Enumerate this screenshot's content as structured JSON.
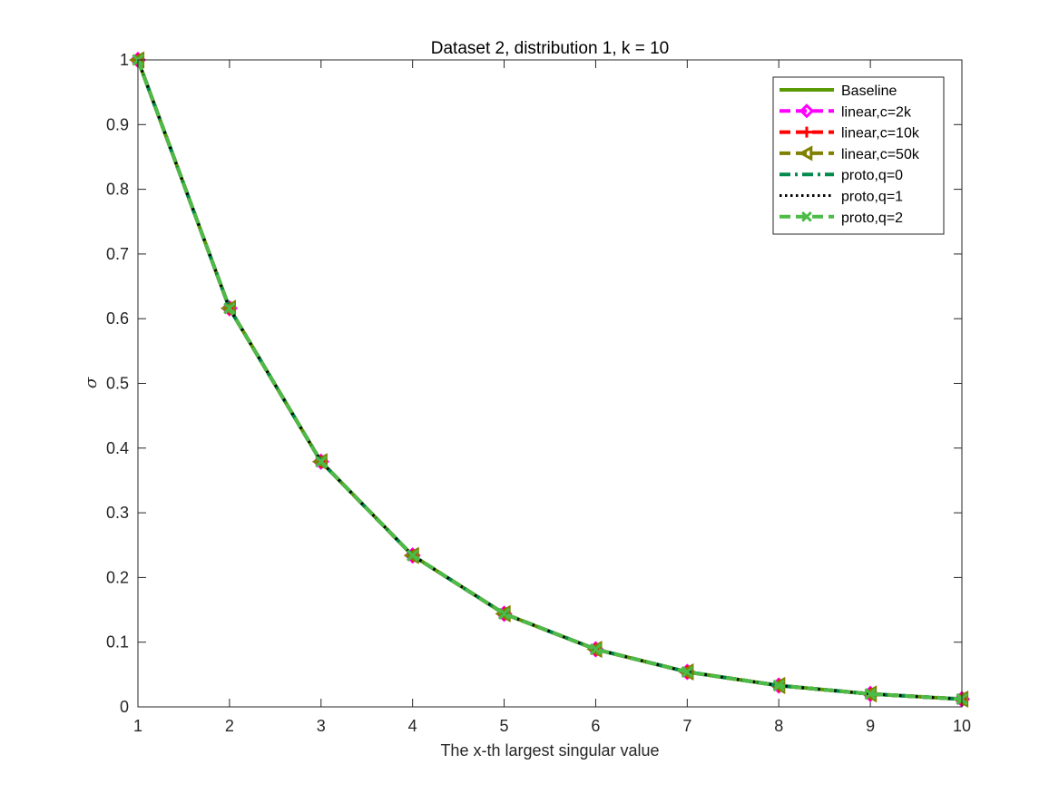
{
  "chart_data": {
    "type": "line",
    "title": "Dataset 2, distribution 1, k = 10",
    "xlabel": "The x-th largest singular value",
    "ylabel": "σ",
    "xlim": [
      1,
      10
    ],
    "ylim": [
      0,
      1
    ],
    "xticks": [
      "1",
      "2",
      "3",
      "4",
      "5",
      "6",
      "7",
      "8",
      "9",
      "10"
    ],
    "yticks": [
      "0",
      "0.1",
      "0.2",
      "0.3",
      "0.4",
      "0.5",
      "0.6",
      "0.7",
      "0.8",
      "0.9",
      "1"
    ],
    "grid": false,
    "legend_position": "top-right",
    "x": [
      1,
      2,
      3,
      4,
      5,
      6,
      7,
      8,
      9,
      10
    ],
    "series": [
      {
        "name": "Baseline",
        "color": "#5a9b05",
        "style": "solid",
        "marker": "none",
        "values": [
          1.0,
          0.616,
          0.379,
          0.234,
          0.144,
          0.089,
          0.054,
          0.033,
          0.02,
          0.012
        ]
      },
      {
        "name": "linear,c=2k",
        "color": "#ff00ff",
        "style": "dashed",
        "marker": "diamond",
        "values": [
          1.0,
          0.616,
          0.379,
          0.234,
          0.144,
          0.089,
          0.054,
          0.033,
          0.02,
          0.012
        ]
      },
      {
        "name": "linear,c=10k",
        "color": "#ff0000",
        "style": "dashed",
        "marker": "plus",
        "values": [
          1.0,
          0.616,
          0.379,
          0.234,
          0.144,
          0.089,
          0.054,
          0.033,
          0.02,
          0.012
        ]
      },
      {
        "name": "linear,c=50k",
        "color": "#808000",
        "style": "dashed",
        "marker": "triangle-left",
        "values": [
          1.0,
          0.616,
          0.379,
          0.234,
          0.144,
          0.089,
          0.054,
          0.033,
          0.02,
          0.012
        ]
      },
      {
        "name": "proto,q=0",
        "color": "#008a4b",
        "style": "dashdot",
        "marker": "none",
        "values": [
          1.0,
          0.616,
          0.379,
          0.234,
          0.144,
          0.089,
          0.054,
          0.033,
          0.02,
          0.012
        ]
      },
      {
        "name": "proto,q=1",
        "color": "#000000",
        "style": "dotted",
        "marker": "none",
        "values": [
          1.0,
          0.616,
          0.379,
          0.234,
          0.144,
          0.089,
          0.054,
          0.033,
          0.02,
          0.012
        ]
      },
      {
        "name": "proto,q=2",
        "color": "#4cbb47",
        "style": "dashed",
        "marker": "x",
        "values": [
          1.0,
          0.616,
          0.379,
          0.234,
          0.144,
          0.089,
          0.054,
          0.033,
          0.02,
          0.012
        ]
      }
    ]
  }
}
